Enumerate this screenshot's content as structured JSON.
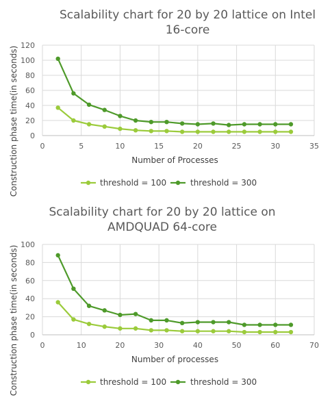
{
  "chart_data": [
    {
      "type": "line",
      "title_line1": "Scalability chart for 20 by 20 lattice on Intel",
      "title_line2": "16-core",
      "xlabel": "Number of Processes",
      "ylabel": "Construction phase time(in seconds)",
      "xlim": [
        0,
        35
      ],
      "ylim": [
        0,
        120
      ],
      "xticks": [
        0,
        5,
        10,
        15,
        20,
        25,
        30,
        35
      ],
      "yticks": [
        0,
        20,
        40,
        60,
        80,
        100,
        120
      ],
      "grid": true,
      "legend_position": "bottom",
      "series": [
        {
          "name": "threshold = 100",
          "color": "#9BCB3B",
          "x": [
            2,
            4,
            6,
            8,
            10,
            12,
            14,
            16,
            18,
            20,
            22,
            24,
            26,
            28,
            30,
            32
          ],
          "y": [
            37,
            20,
            15,
            12,
            9,
            7,
            6,
            6,
            5,
            5,
            5,
            5,
            5,
            5,
            5,
            5
          ]
        },
        {
          "name": "threshold = 300",
          "color": "#4E9A2A",
          "x": [
            2,
            4,
            6,
            8,
            10,
            12,
            14,
            16,
            18,
            20,
            22,
            24,
            26,
            28,
            30,
            32
          ],
          "y": [
            102,
            56,
            41,
            34,
            26,
            20,
            18,
            18,
            16,
            15,
            16,
            14,
            15,
            15,
            15,
            15
          ]
        }
      ]
    },
    {
      "type": "line",
      "title_line1": "Scalability chart for 20 by 20 lattice on",
      "title_line2": "AMDQUAD 64-core",
      "xlabel": "Number of processes",
      "ylabel": "Construction phase time(in seconds)",
      "xlim": [
        0,
        70
      ],
      "ylim": [
        0,
        100
      ],
      "xticks": [
        0,
        10,
        20,
        30,
        40,
        50,
        60,
        70
      ],
      "yticks": [
        0,
        20,
        40,
        60,
        80,
        100
      ],
      "grid": true,
      "legend_position": "bottom",
      "series": [
        {
          "name": "threshold = 100",
          "color": "#9BCB3B",
          "x": [
            4,
            8,
            12,
            16,
            20,
            24,
            28,
            32,
            36,
            40,
            44,
            48,
            52,
            56,
            60,
            64
          ],
          "y": [
            36,
            17,
            12,
            9,
            7,
            7,
            5,
            5,
            4,
            4,
            4,
            4,
            3,
            3,
            3,
            3
          ]
        },
        {
          "name": "threshold = 300",
          "color": "#4E9A2A",
          "x": [
            4,
            8,
            12,
            16,
            20,
            24,
            28,
            32,
            36,
            40,
            44,
            48,
            52,
            56,
            60,
            64
          ],
          "y": [
            88,
            51,
            32,
            27,
            22,
            23,
            16,
            16,
            13,
            14,
            14,
            14,
            11,
            11,
            11,
            11
          ]
        }
      ]
    }
  ]
}
